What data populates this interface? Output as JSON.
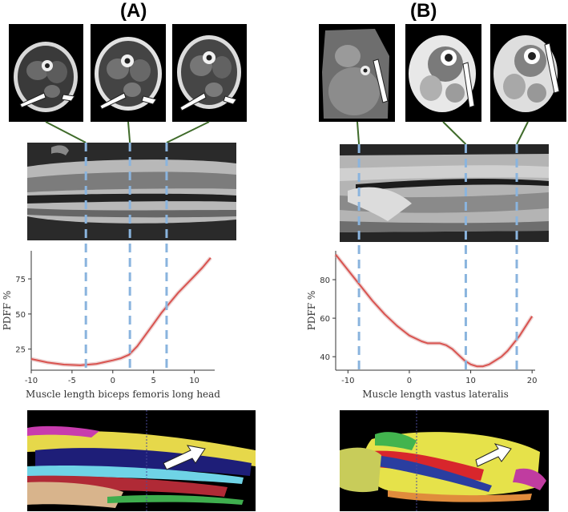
{
  "panels": [
    {
      "label": "(A)",
      "chart_data": {
        "type": "line",
        "xlabel": "Muscle length biceps femoris long head",
        "ylabel": "PDFF %",
        "xlim": [
          -10,
          12.5
        ],
        "ylim": [
          10,
          95
        ],
        "x_ticks": [
          -10,
          -5,
          0,
          5,
          10
        ],
        "y_ticks": [
          25,
          50,
          75
        ],
        "series": [
          {
            "x": [
              -10,
              -8,
              -6,
              -4,
              -2,
              0,
              1,
              2,
              3,
              4,
              5,
              6,
              7,
              8,
              9,
              10,
              11,
              12
            ],
            "y": [
              18,
              15.5,
              14,
              13.5,
              14.5,
              17,
              18.5,
              21,
              27,
              35,
              43,
              51,
              58,
              65,
              71,
              77,
              83,
              90
            ]
          }
        ],
        "dashed_x": [
          -3.3,
          2.1,
          6.6
        ],
        "line_color": "#d9534f",
        "dash_color": "#8ab4de"
      }
    },
    {
      "label": "(B)",
      "chart_data": {
        "type": "line",
        "xlabel": "Muscle length vastus lateralis",
        "ylabel": "PDFF %",
        "xlim": [
          -12,
          20.5
        ],
        "ylim": [
          33,
          95
        ],
        "x_ticks": [
          -10,
          0,
          10,
          20
        ],
        "y_ticks": [
          40,
          60,
          80
        ],
        "series": [
          {
            "x": [
              -12,
              -10,
              -8,
              -6,
              -4,
              -2,
              0,
              2,
              3,
              4,
              5,
              6,
              7,
              8,
              9,
              10,
              11,
              12,
              13,
              14,
              15,
              16,
              17,
              18,
              19,
              20
            ],
            "y": [
              93,
              85,
              77,
              69,
              62,
              56,
              51,
              48,
              47,
              47,
              47,
              46,
              44,
              41,
              38,
              36,
              35,
              35,
              36,
              38,
              40,
              43,
              47,
              51,
              56,
              61
            ]
          }
        ],
        "dashed_x": [
          -8.2,
          9.2,
          17.5
        ],
        "line_color": "#d9534f",
        "dash_color": "#8ab4de"
      }
    }
  ]
}
